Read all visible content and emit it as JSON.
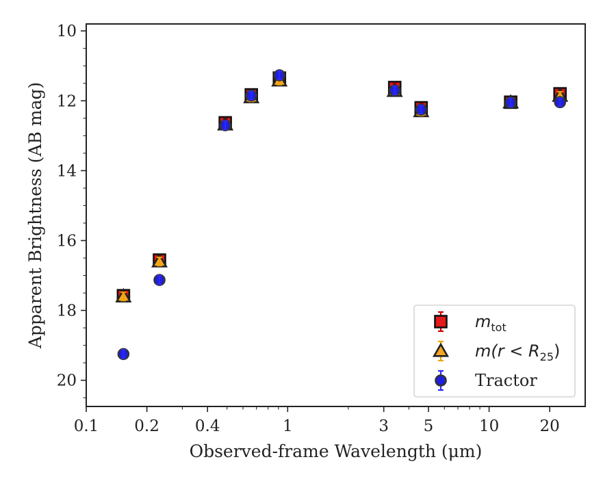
{
  "chart_data": {
    "type": "scatter",
    "xlabel": "Observed-frame Wavelength (μm)",
    "ylabel": "Apparent Brightness (AB mag)",
    "x_scale": "log",
    "xlim": [
      0.1,
      30
    ],
    "ylim": [
      20.75,
      9.8
    ],
    "y_inverted": true,
    "x_ticks": [
      0.1,
      0.2,
      0.4,
      1,
      3,
      5,
      10,
      20
    ],
    "x_tick_labels": [
      "0.1",
      "0.2",
      "0.4",
      "1",
      "3",
      "5",
      "10",
      "20"
    ],
    "y_ticks": [
      10,
      12,
      14,
      16,
      18,
      20
    ],
    "y_tick_labels": [
      "10",
      "12",
      "14",
      "16",
      "18",
      "20"
    ],
    "grid": false,
    "legend_placement": "bottom-right",
    "series": [
      {
        "name": "m_tot",
        "legend_base": "m",
        "legend_sub": "tot",
        "legend_suffix": "",
        "marker": "square",
        "face_color": "#e41a1c",
        "edge_color": "#111111",
        "error_color": "#cc0000",
        "x": [
          0.153,
          0.231,
          0.49,
          0.66,
          0.91,
          3.4,
          4.6,
          12.8,
          22.5
        ],
        "y": [
          17.58,
          16.56,
          12.63,
          11.83,
          11.35,
          11.62,
          12.2,
          12.04,
          11.8
        ]
      },
      {
        "name": "m(r < R25)",
        "legend_base": "m(r < R",
        "legend_sub": "25",
        "legend_suffix": ")",
        "marker": "triangle",
        "face_color": "#f5a623",
        "edge_color": "#222222",
        "error_color": "#f0a500",
        "x": [
          0.153,
          0.231,
          0.49,
          0.66,
          0.91,
          3.4,
          4.6,
          12.8,
          22.5
        ],
        "y": [
          17.6,
          16.6,
          12.68,
          11.9,
          11.42,
          11.72,
          12.3,
          12.05,
          11.86
        ]
      },
      {
        "name": "Tractor",
        "legend_base": "Tractor",
        "legend_sub": "",
        "legend_suffix": "",
        "marker": "circle",
        "face_color": "#1f1fe0",
        "edge_color": "#333333",
        "error_color": "#2a2aff",
        "x": [
          0.153,
          0.231,
          0.49,
          0.66,
          0.91,
          3.4,
          4.6,
          12.8,
          22.5
        ],
        "y": [
          19.25,
          17.13,
          12.7,
          11.85,
          11.27,
          11.7,
          12.25,
          12.05,
          12.04
        ]
      }
    ]
  }
}
